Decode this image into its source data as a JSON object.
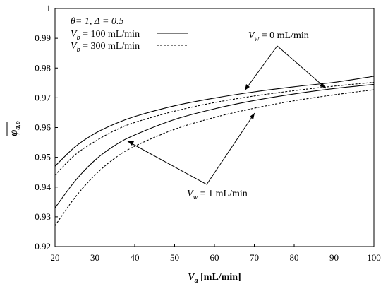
{
  "chart_data": {
    "type": "line",
    "xlabel": {
      "main": "V",
      "sub": "a",
      "rest": " [mL/min]"
    },
    "ylabel": {
      "main": "φ",
      "sub": "a,o"
    },
    "xlim": [
      20,
      100
    ],
    "ylim": [
      0.92,
      1.0
    ],
    "x_ticks": [
      "20",
      "30",
      "40",
      "50",
      "60",
      "70",
      "80",
      "90",
      "100"
    ],
    "y_ticks": [
      "0.92",
      "0.93",
      "0.94",
      "0.95",
      "0.96",
      "0.97",
      "0.98",
      "0.99",
      "1"
    ],
    "grid": false,
    "legend": {
      "header": "θ= 1, Δ = 0.5",
      "entries": [
        {
          "main": "V",
          "sub": "b",
          "rest": " = 100 mL/min",
          "style": "solid"
        },
        {
          "main": "V",
          "sub": "b",
          "rest": " = 300 mL/min",
          "style": "dashed"
        }
      ]
    },
    "annotations": [
      {
        "main": "V",
        "sub": "w",
        "rest": " = 0 mL/min"
      },
      {
        "main": "V",
        "sub": "w",
        "rest": " = 1 mL/min"
      }
    ],
    "x": [
      20,
      25,
      30,
      35,
      40,
      50,
      60,
      70,
      80,
      90,
      100
    ],
    "series": [
      {
        "style": "solid",
        "values": [
          0.947,
          0.9535,
          0.958,
          0.9612,
          0.9637,
          0.9673,
          0.9699,
          0.972,
          0.9737,
          0.9752,
          0.9772
        ]
      },
      {
        "style": "dashed",
        "values": [
          0.944,
          0.9508,
          0.9553,
          0.959,
          0.9617,
          0.9655,
          0.9684,
          0.9706,
          0.9724,
          0.9739,
          0.9752
        ]
      },
      {
        "style": "solid",
        "values": [
          0.933,
          0.942,
          0.949,
          0.954,
          0.9575,
          0.9627,
          0.9663,
          0.9691,
          0.9713,
          0.9731,
          0.9745
        ]
      },
      {
        "style": "dashed",
        "values": [
          0.927,
          0.9365,
          0.944,
          0.9497,
          0.9537,
          0.9594,
          0.9634,
          0.9665,
          0.969,
          0.971,
          0.9727
        ]
      }
    ]
  }
}
